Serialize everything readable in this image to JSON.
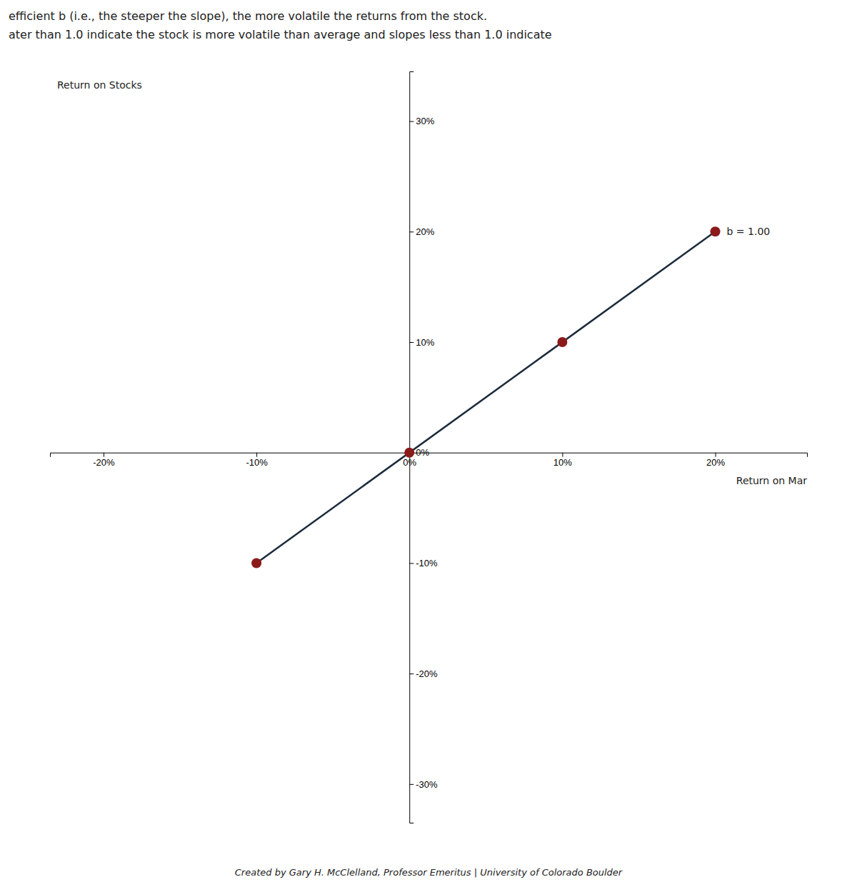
{
  "chart_data": {
    "type": "line",
    "title": "efficient b (i.e., the steeper the slope), the more volatile the returns from the stock.",
    "subtitle": "ater than 1.0 indicate the stock is more volatile than average and slopes less than 1.0 indicate",
    "xlabel": "Return on Mar",
    "ylabel": "Return on Stocks",
    "annotations": [
      {
        "text": "b = 1.00"
      },
      {
        "text": "Created by Gary H. McClelland, Professor Emeritus | University of Colorado Boulder"
      }
    ],
    "series": [
      {
        "type": "line",
        "color": "#1C2B3A",
        "x": [
          -0.1,
          0.2
        ],
        "values": [
          -0.1,
          0.2
        ]
      },
      {
        "type": "scatter",
        "color": "#8B1A1A",
        "x": [
          -0.1,
          0.0,
          0.1,
          0.2
        ],
        "values": [
          -0.1,
          0.0,
          0.1,
          0.2
        ]
      }
    ],
    "xlim": [
      -0.235,
      0.26
    ],
    "ylim": [
      -0.335,
      0.345
    ],
    "xticks": [
      {
        "value": -0.2,
        "label": "-20%"
      },
      {
        "value": -0.1,
        "label": "-10%"
      },
      {
        "value": 0.0,
        "label": "0%"
      },
      {
        "value": 0.1,
        "label": "10%"
      },
      {
        "value": 0.2,
        "label": "20%"
      }
    ],
    "yticks": [
      {
        "value": -0.3,
        "label": "-30%"
      },
      {
        "value": -0.2,
        "label": "-20%"
      },
      {
        "value": -0.1,
        "label": "-10%"
      },
      {
        "value": 0.0,
        "label": "0%"
      },
      {
        "value": 0.1,
        "label": "10%"
      },
      {
        "value": 0.2,
        "label": "20%"
      },
      {
        "value": 0.3,
        "label": "30%"
      }
    ],
    "grid": false
  }
}
